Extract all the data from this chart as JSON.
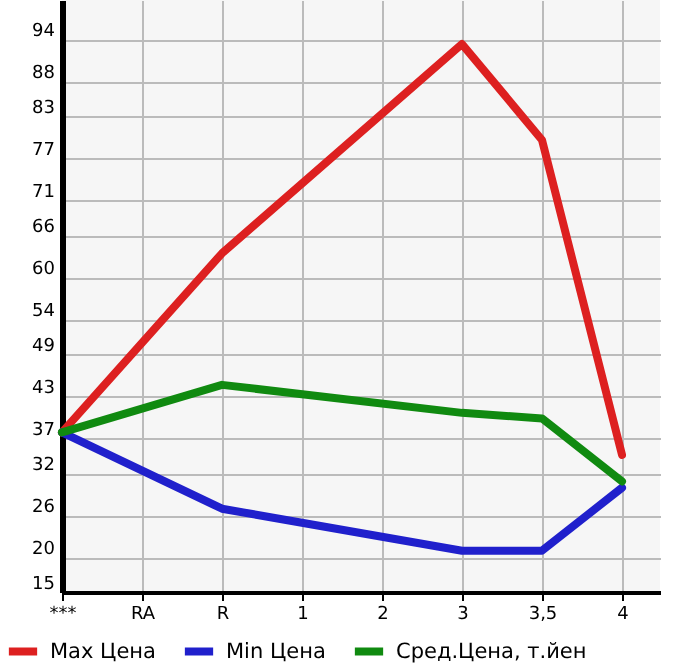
{
  "chart_data": {
    "type": "line",
    "categories": [
      "***",
      "RA",
      "R",
      "1",
      "2",
      "3",
      "3,5",
      "4"
    ],
    "series": [
      {
        "name": "Max Цена",
        "color": "#dd2020",
        "values": [
          37.8,
          null,
          63.4,
          null,
          null,
          93.3,
          79.6,
          34.6
        ]
      },
      {
        "name": "Min Цена",
        "color": "#2020cc",
        "values": [
          37.8,
          null,
          26.9,
          null,
          null,
          20.9,
          20.9,
          29.9
        ]
      },
      {
        "name": "Сред.Цена, т.йен",
        "color": "#108a10",
        "values": [
          37.8,
          null,
          44.6,
          null,
          null,
          40.6,
          39.8,
          30.8
        ]
      }
    ],
    "ylim": [
      15,
      99.6
    ],
    "yticks": [
      15,
      20,
      26,
      32,
      37,
      43,
      49,
      54,
      60,
      66,
      71,
      77,
      83,
      88,
      94
    ],
    "grid": true,
    "legend": "bottom"
  }
}
